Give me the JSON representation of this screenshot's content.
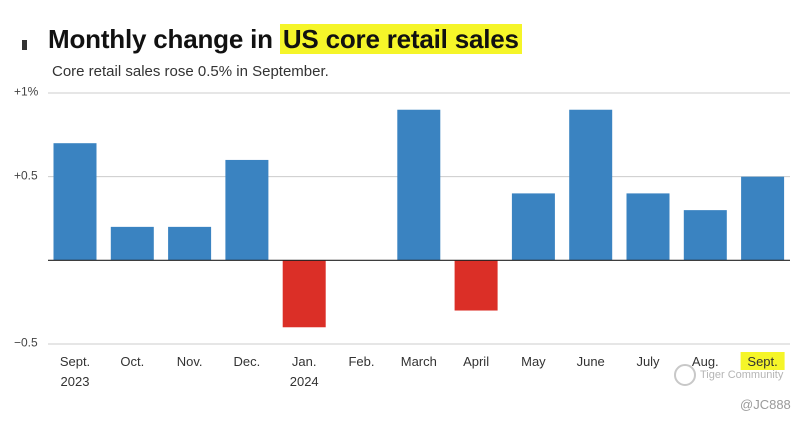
{
  "header": {
    "title_prefix": "Monthly change in ",
    "title_highlight": "US core retail sales",
    "subtitle": "Core retail sales rose 0.5% in September."
  },
  "colors": {
    "positive": "#3a83c1",
    "negative": "#db2f27",
    "highlight": "#f5f529",
    "grid": "#cccccc",
    "zero_line": "#222222"
  },
  "chart_data": {
    "type": "bar",
    "title": "Monthly change in US core retail sales",
    "subtitle": "Core retail sales rose 0.5% in September.",
    "xlabel": "",
    "ylabel": "",
    "ylim": [
      -0.5,
      1.0
    ],
    "yticks": [
      {
        "value": 1.0,
        "label": "+1%"
      },
      {
        "value": 0.5,
        "label": "+0.5"
      },
      {
        "value": -0.5,
        "label": "−0.5"
      }
    ],
    "grid": true,
    "categories": [
      {
        "label": "Sept.",
        "sublabel": "2023"
      },
      {
        "label": "Oct."
      },
      {
        "label": "Nov."
      },
      {
        "label": "Dec."
      },
      {
        "label": "Jan.",
        "sublabel": "2024"
      },
      {
        "label": "Feb."
      },
      {
        "label": "March"
      },
      {
        "label": "April"
      },
      {
        "label": "May"
      },
      {
        "label": "June"
      },
      {
        "label": "July"
      },
      {
        "label": "Aug."
      },
      {
        "label": "Sept.",
        "highlight": true
      }
    ],
    "values": [
      0.7,
      0.2,
      0.2,
      0.6,
      -0.4,
      0.0,
      0.9,
      -0.3,
      0.4,
      0.9,
      0.4,
      0.3,
      0.5
    ]
  },
  "watermark": {
    "text": "Tiger Community",
    "handle": "@JC888"
  }
}
